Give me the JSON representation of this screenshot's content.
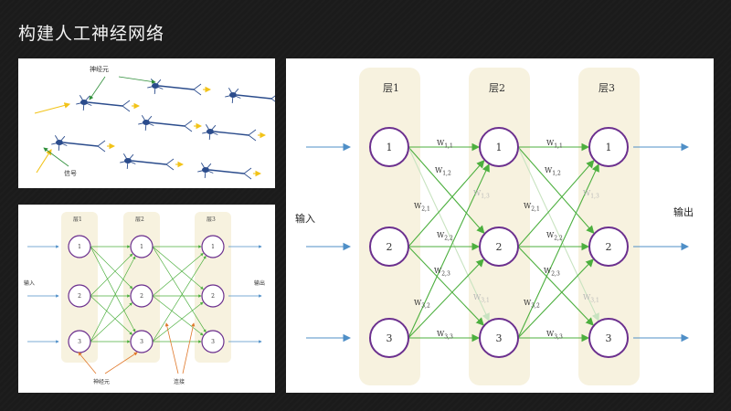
{
  "slide": {
    "title": "构建人工神经网络"
  },
  "neuron_panel": {
    "neuron_label": "神经元",
    "signal_label": "信号"
  },
  "small_network": {
    "layer_labels": [
      "层1",
      "层2",
      "层3"
    ],
    "node_labels": [
      "1",
      "2",
      "3"
    ],
    "input_label": "输入",
    "output_label": "输出",
    "neuron_label": "神经元",
    "connection_label": "连接"
  },
  "large_network": {
    "layer_labels": [
      "层1",
      "层2",
      "层3"
    ],
    "node_labels": [
      "1",
      "2",
      "3"
    ],
    "input_label": "输入",
    "output_label": "输出",
    "weight_labels": [
      "W1,1",
      "W1,2",
      "W2,1",
      "W2,2",
      "W2,3",
      "W3,2",
      "W3,3",
      "W1,3",
      "W3,1"
    ]
  },
  "colors": {
    "slide_background": "#1b1b1b",
    "layer_band": "#f7f2df",
    "node_stroke": "#6b2f8e",
    "connection_green": "#4caf3e",
    "connection_faint": "#c8e3c0",
    "io_arrow_blue": "#4f8fc7",
    "neuron_body_blue": "#2b4c8c",
    "signal_yellow": "#f2c318",
    "annotation_orange": "#e0782a"
  }
}
